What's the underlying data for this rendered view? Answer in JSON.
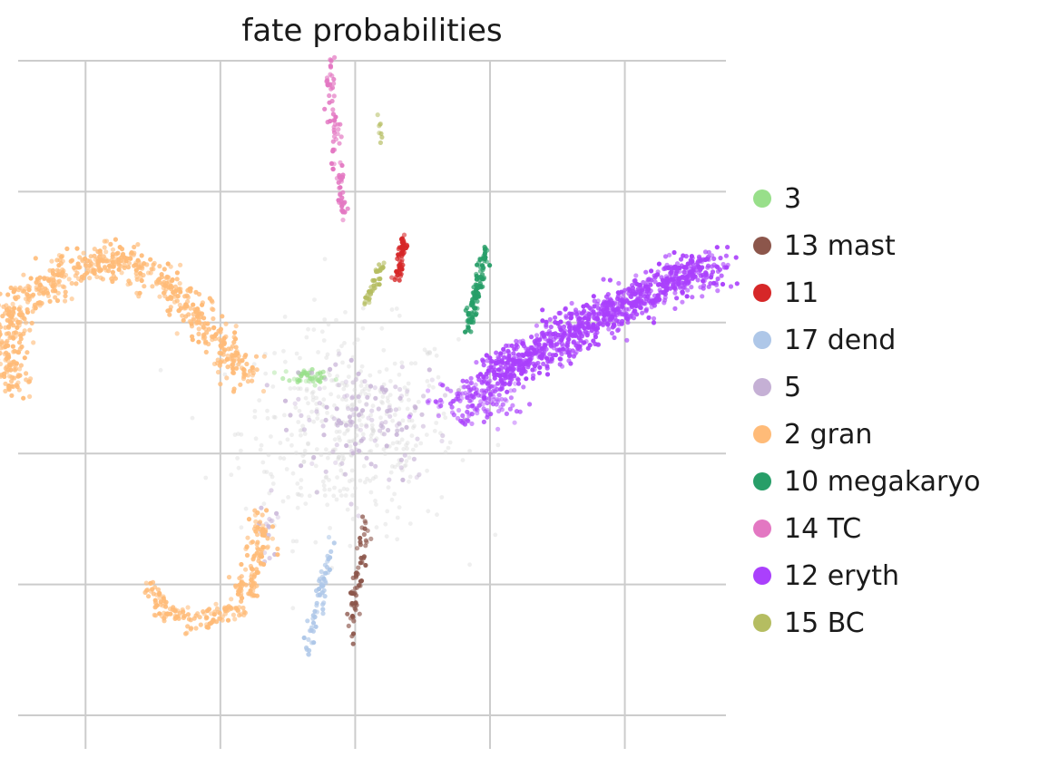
{
  "chart_data": {
    "type": "scatter",
    "title": "fate probabilities",
    "xlabel": "",
    "ylabel": "",
    "xlim": [
      -10,
      11
    ],
    "ylim": [
      -10,
      10
    ],
    "grid": true,
    "tick_labels_shown": false,
    "legend_placement": "right",
    "background_cell_color": "#dcdcdc",
    "series": [
      {
        "name": "3",
        "color": "#98df8a",
        "clusters": [
          {
            "center": [
              -1.4,
              0.35
            ],
            "spread": [
              0.35,
              0.12
            ],
            "n": 45
          }
        ]
      },
      {
        "name": "13 mast",
        "color": "#8c564b",
        "path": [
          [
            0.3,
            -4.0
          ],
          [
            0.15,
            -5.2
          ],
          [
            0.0,
            -6.5
          ],
          [
            -0.15,
            -7.7
          ]
        ],
        "n": 60
      },
      {
        "name": "11",
        "color": "#d62728",
        "path": [
          [
            1.45,
            4.6
          ],
          [
            1.35,
            4.0
          ],
          [
            1.25,
            3.4
          ]
        ],
        "n": 55
      },
      {
        "name": "17 dend",
        "color": "#aec7e8",
        "path": [
          [
            -0.7,
            -4.6
          ],
          [
            -0.95,
            -5.8
          ],
          [
            -1.2,
            -7.2
          ],
          [
            -1.4,
            -8.2
          ]
        ],
        "n": 60
      },
      {
        "name": "5",
        "color": "#c5b0d5",
        "clusters": [
          {
            "center": [
              0.3,
              -1.0
            ],
            "spread": [
              1.3,
              0.9
            ],
            "n": 140
          },
          {
            "center": [
              -2.6,
              -4.2
            ],
            "spread": [
              0.15,
              0.5
            ],
            "n": 18
          }
        ]
      },
      {
        "name": "2 gran",
        "color": "#ffbb78",
        "path": [
          [
            -3.1,
            0.3
          ],
          [
            -4.2,
            1.6
          ],
          [
            -5.4,
            3.0
          ],
          [
            -7.0,
            3.9
          ],
          [
            -8.6,
            3.6
          ],
          [
            -9.9,
            2.6
          ],
          [
            -10.4,
            1.4
          ],
          [
            -10.3,
            0.6
          ],
          [
            -10.0,
            -0.1
          ]
        ],
        "n": 700,
        "path2": [
          [
            -2.8,
            -4.0
          ],
          [
            -3.0,
            -5.5
          ],
          [
            -3.5,
            -6.7
          ],
          [
            -4.7,
            -7.2
          ],
          [
            -5.7,
            -6.8
          ],
          [
            -6.0,
            -6.0
          ]
        ],
        "n2": 250
      },
      {
        "name": "10 megakaryo",
        "color": "#279e68",
        "path": [
          [
            3.9,
            4.3
          ],
          [
            3.7,
            3.4
          ],
          [
            3.5,
            2.5
          ],
          [
            3.3,
            1.7
          ]
        ],
        "n": 110
      },
      {
        "name": "14 TC",
        "color": "#e377c2",
        "path": [
          [
            -0.75,
            10.0
          ],
          [
            -0.7,
            8.8
          ],
          [
            -0.6,
            7.5
          ],
          [
            -0.45,
            6.4
          ],
          [
            -0.3,
            5.2
          ]
        ],
        "n": 85
      },
      {
        "name": "12 eryth",
        "color": "#aa40fc",
        "path": [
          [
            4.0,
            0.4
          ],
          [
            5.5,
            1.1
          ],
          [
            7.0,
            2.0
          ],
          [
            8.5,
            2.8
          ],
          [
            10.0,
            3.5
          ],
          [
            10.7,
            3.8
          ]
        ],
        "n": 950,
        "clusters": [
          {
            "center": [
              3.6,
              -0.35
            ],
            "spread": [
              0.6,
              0.35
            ],
            "n": 160
          }
        ]
      },
      {
        "name": "15 BC",
        "color": "#b5bd61",
        "path": [
          [
            0.9,
            4.0
          ],
          [
            0.6,
            3.3
          ],
          [
            0.35,
            2.6
          ]
        ],
        "n": 35,
        "clusters": [
          {
            "center": [
              0.75,
              7.8
            ],
            "spread": [
              0.05,
              0.2
            ],
            "n": 8
          }
        ]
      }
    ]
  }
}
